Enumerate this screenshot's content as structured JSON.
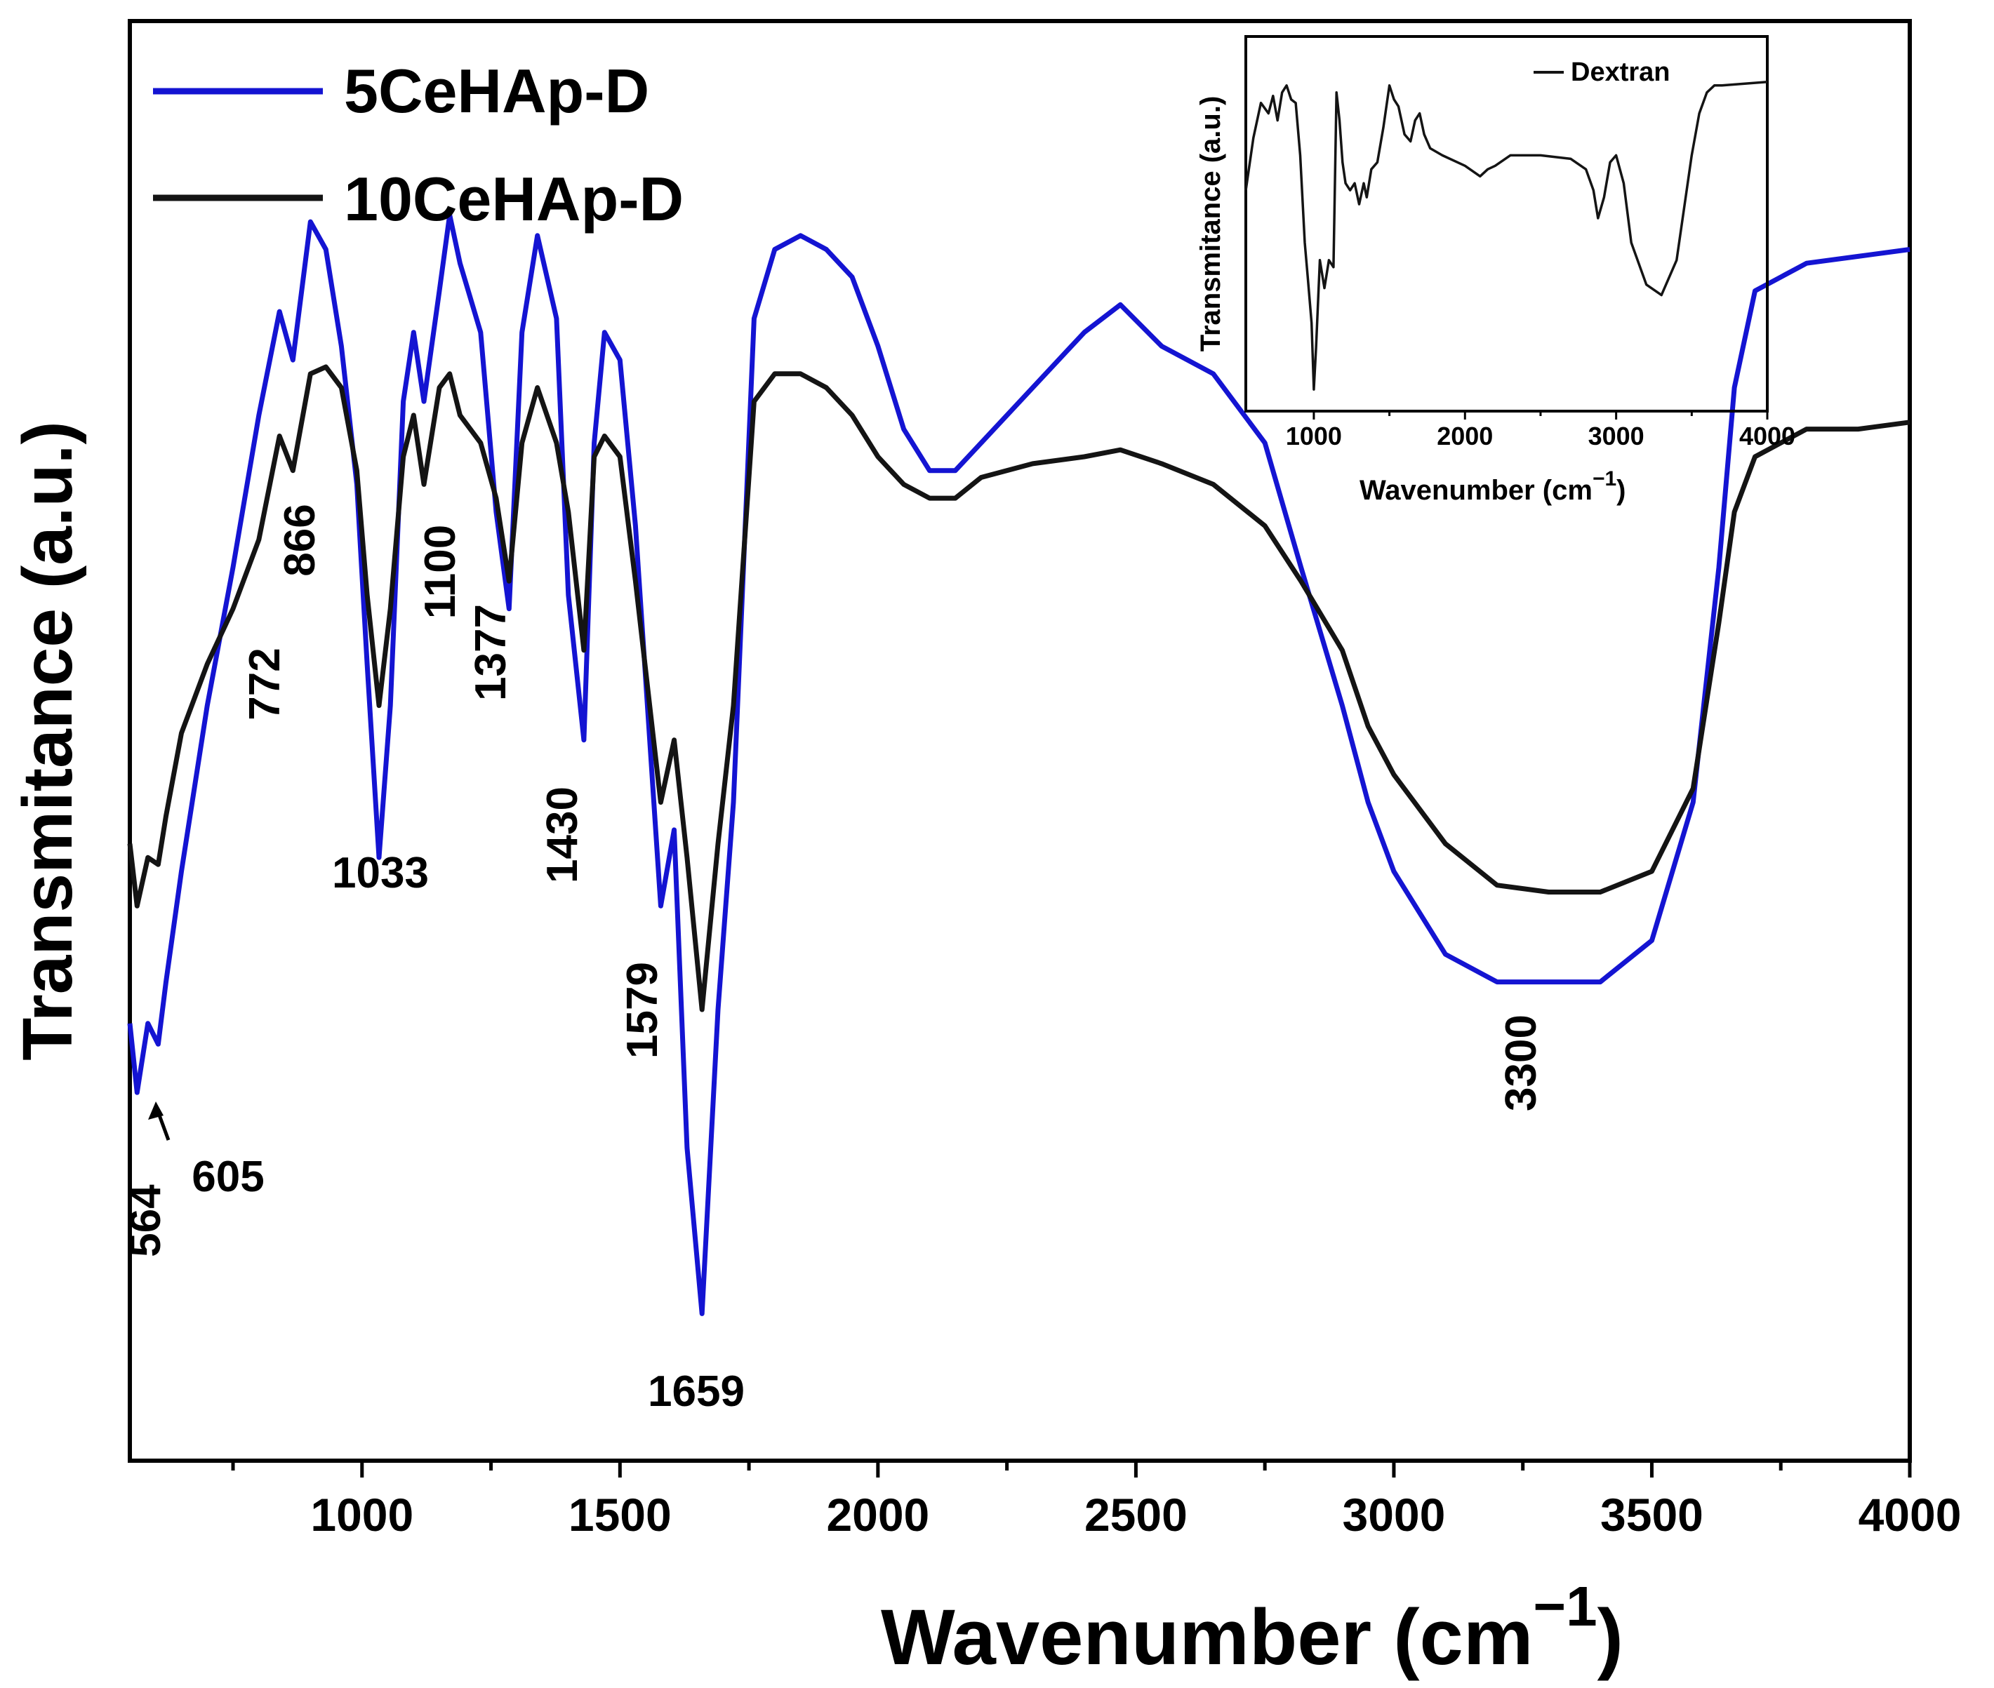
{
  "chart_data": [
    {
      "type": "line",
      "title": "",
      "xlabel": "Wavenumber (cm",
      "xlabel_sup": "−1",
      "xlabel_close": ")",
      "ylabel": "Transmitance (a.u.)",
      "xlim": [
        550,
        4000
      ],
      "ylim": [
        0,
        100
      ],
      "xticks": [
        1000,
        1500,
        2000,
        2500,
        3000,
        3500,
        4000
      ],
      "yticks_shown": false,
      "legend_position": "top-left",
      "series": [
        {
          "name": "5CeHAp-D",
          "color": "#1414d2",
          "x": [
            550,
            564,
            585,
            605,
            620,
            650,
            700,
            750,
            800,
            840,
            866,
            900,
            930,
            960,
            990,
            1010,
            1033,
            1055,
            1080,
            1100,
            1120,
            1150,
            1170,
            1190,
            1230,
            1260,
            1285,
            1310,
            1340,
            1377,
            1400,
            1430,
            1450,
            1470,
            1500,
            1530,
            1579,
            1605,
            1630,
            1659,
            1690,
            1720,
            1760,
            1800,
            1850,
            1900,
            1950,
            2000,
            2050,
            2100,
            2150,
            2200,
            2300,
            2400,
            2470,
            2550,
            2650,
            2750,
            2820,
            2900,
            2950,
            3000,
            3100,
            3200,
            3300,
            3400,
            3500,
            3580,
            3630,
            3660,
            3700,
            3750,
            3800,
            3900,
            4000
          ],
          "y": [
            29,
            24,
            29,
            27.5,
            32,
            40,
            52,
            62,
            73,
            80.5,
            77,
            87,
            85,
            78,
            68,
            55,
            41,
            52,
            74,
            79,
            74,
            82,
            87.5,
            84,
            79,
            66,
            59,
            79,
            86,
            80,
            60,
            49.5,
            71,
            79,
            77,
            65,
            37.5,
            43,
            20,
            8,
            30,
            45,
            80,
            85,
            86,
            85,
            83,
            78,
            72,
            69,
            69,
            71,
            75,
            79,
            81,
            78,
            76,
            71,
            62,
            52,
            45,
            40,
            34,
            32,
            32,
            32,
            35,
            45,
            62,
            75,
            82,
            83,
            84,
            84.5,
            85
          ]
        },
        {
          "name": "10CeHAp-D",
          "color": "#141414",
          "x": [
            550,
            564,
            585,
            605,
            620,
            650,
            700,
            750,
            800,
            840,
            866,
            900,
            930,
            960,
            990,
            1010,
            1033,
            1055,
            1080,
            1100,
            1120,
            1150,
            1170,
            1190,
            1230,
            1260,
            1285,
            1310,
            1340,
            1377,
            1400,
            1430,
            1450,
            1470,
            1500,
            1530,
            1579,
            1605,
            1630,
            1659,
            1690,
            1720,
            1760,
            1800,
            1850,
            1900,
            1950,
            2000,
            2050,
            2100,
            2150,
            2200,
            2300,
            2400,
            2470,
            2550,
            2650,
            2750,
            2820,
            2900,
            2950,
            3000,
            3100,
            3200,
            3300,
            3400,
            3500,
            3580,
            3630,
            3660,
            3700,
            3750,
            3800,
            3900,
            4000
          ],
          "y": [
            42,
            37.5,
            41,
            40.5,
            44,
            50,
            55,
            59,
            64,
            71.5,
            69,
            76,
            76.5,
            75,
            69,
            60,
            52,
            59,
            70,
            73,
            68,
            75,
            76,
            73,
            71,
            67,
            61,
            71,
            75,
            71,
            66,
            56,
            70,
            71.5,
            70,
            61,
            45,
            49.5,
            41,
            30,
            42,
            52,
            74,
            76,
            76,
            75,
            73,
            70,
            68,
            67,
            67,
            68.5,
            69.5,
            70,
            70.5,
            69.5,
            68,
            65,
            61,
            56,
            50.5,
            47,
            42,
            39,
            38.5,
            38.5,
            40,
            46,
            58,
            66,
            70,
            71,
            72,
            72,
            72.5
          ]
        }
      ],
      "annotations": [
        {
          "text": "564",
          "x": 564
        },
        {
          "text": "605",
          "x": 605
        },
        {
          "text": "772",
          "x": 772
        },
        {
          "text": "866",
          "x": 866
        },
        {
          "text": "1033",
          "x": 1033
        },
        {
          "text": "1100",
          "x": 1100
        },
        {
          "text": "1377",
          "x": 1377
        },
        {
          "text": "1430",
          "x": 1430
        },
        {
          "text": "1579",
          "x": 1579
        },
        {
          "text": "1659",
          "x": 1659
        },
        {
          "text": "3300",
          "x": 3300
        }
      ]
    },
    {
      "type": "line",
      "title": "",
      "xlabel": "Wavenumber (cm",
      "xlabel_sup": "−1",
      "xlabel_close": ")",
      "ylabel": "Transmitance (a.u.)",
      "xlim": [
        550,
        4000
      ],
      "ylim": [
        0,
        100
      ],
      "xticks": [
        1000,
        2000,
        3000,
        4000
      ],
      "legend_position": "top-right",
      "series": [
        {
          "name": "Dextran",
          "color": "#141414",
          "x": [
            550,
            600,
            650,
            700,
            730,
            760,
            790,
            820,
            850,
            880,
            910,
            940,
            960,
            985,
            1000,
            1015,
            1040,
            1070,
            1100,
            1130,
            1150,
            1170,
            1190,
            1210,
            1240,
            1270,
            1300,
            1330,
            1350,
            1380,
            1420,
            1460,
            1500,
            1530,
            1560,
            1600,
            1640,
            1670,
            1700,
            1730,
            1770,
            1850,
            2000,
            2100,
            2150,
            2200,
            2300,
            2500,
            2700,
            2800,
            2850,
            2880,
            2920,
            2960,
            3000,
            3050,
            3100,
            3200,
            3300,
            3400,
            3500,
            3550,
            3600,
            3650,
            3700,
            4000
          ],
          "y": [
            60,
            75,
            85,
            82,
            87,
            80,
            88,
            90,
            86,
            85,
            70,
            45,
            35,
            22,
            3,
            15,
            40,
            32,
            40,
            38,
            88,
            80,
            68,
            62,
            60,
            62,
            56,
            62,
            58,
            66,
            68,
            78,
            90,
            86,
            84,
            76,
            74,
            80,
            82,
            76,
            72,
            70,
            67,
            64,
            66,
            67,
            70,
            70,
            69,
            66,
            60,
            52,
            58,
            68,
            70,
            62,
            45,
            33,
            30,
            40,
            70,
            82,
            88,
            90,
            90,
            91
          ]
        }
      ]
    }
  ]
}
